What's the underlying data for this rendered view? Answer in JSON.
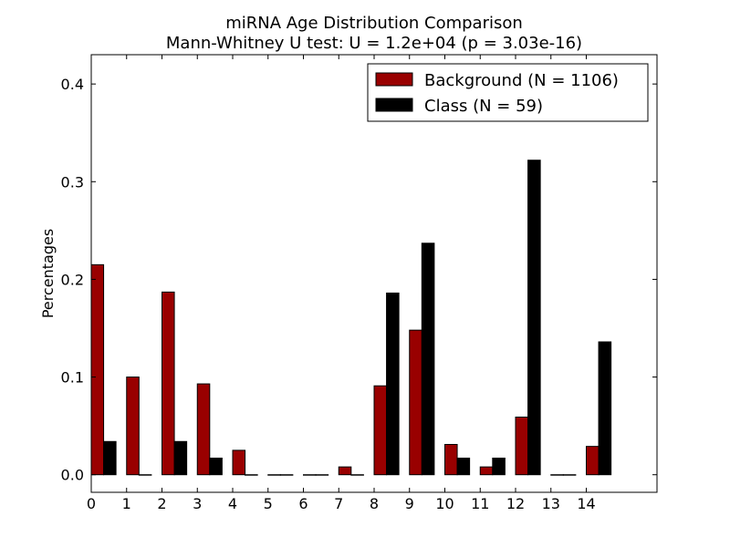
{
  "chart_data": {
    "type": "bar",
    "title": "miRNA Age Distribution Comparison",
    "subtitle": "Mann-Whitney U test: U = 1.2e+04 (p = 3.03e-16)",
    "ylabel": "Percentages",
    "xlabel": "",
    "categories": [
      "0",
      "1",
      "2",
      "3",
      "4",
      "5",
      "6",
      "7",
      "8",
      "9",
      "10",
      "11",
      "12",
      "13",
      "14"
    ],
    "x_ticks": [
      "0",
      "1",
      "2",
      "3",
      "4",
      "5",
      "6",
      "7",
      "8",
      "9",
      "10",
      "11",
      "12",
      "13",
      "14"
    ],
    "xlim": [
      0,
      16
    ],
    "ylim": [
      -0.018,
      0.43
    ],
    "y_ticks": [
      0.0,
      0.1,
      0.2,
      0.3,
      0.4
    ],
    "y_tick_labels": [
      "0.0",
      "0.1",
      "0.2",
      "0.3",
      "0.4"
    ],
    "grid": false,
    "legend_position": "top-right",
    "series": [
      {
        "name": "Background (N = 1106)",
        "color": "#990000",
        "values": [
          0.215,
          0.1,
          0.187,
          0.093,
          0.025,
          0.0,
          0.0,
          0.008,
          0.091,
          0.148,
          0.031,
          0.008,
          0.059,
          0.0,
          0.029
        ]
      },
      {
        "name": "Class (N = 59)",
        "color": "#000000",
        "values": [
          0.034,
          0.0,
          0.034,
          0.017,
          0.0,
          0.0,
          0.0,
          0.0,
          0.186,
          0.237,
          0.017,
          0.017,
          0.322,
          0.0,
          0.136
        ]
      }
    ]
  }
}
